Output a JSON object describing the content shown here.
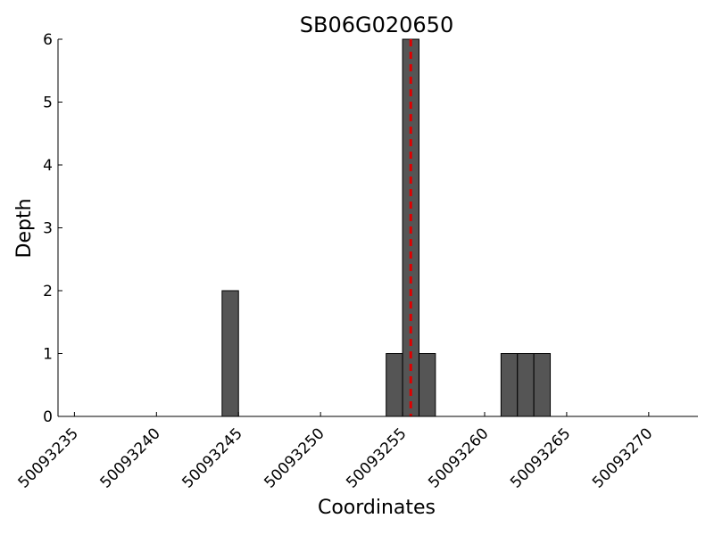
{
  "chart_data": {
    "type": "histogram",
    "title": "SB06G020650",
    "x_label": "Coordinates",
    "y_label": "Depth",
    "bins": [
      50093244,
      50093245,
      50093246,
      50093247,
      50093248,
      50093249,
      50093250,
      50093251,
      50093252,
      50093253,
      50093254,
      50093255,
      50093256,
      50093257,
      50093258,
      50093259,
      50093260,
      50093261,
      50093262,
      50093263,
      50093264
    ],
    "values": [
      2,
      0,
      0,
      0,
      0,
      0,
      0,
      0,
      0,
      0,
      1,
      6,
      1,
      0,
      0,
      0,
      0,
      1,
      1,
      1
    ],
    "color": "#555555",
    "vline": {
      "x": 50093255.5,
      "color": "#dd0000"
    },
    "xlim": [
      50093234,
      50093273
    ],
    "ylim": [
      0,
      6
    ],
    "xticks": [
      50093235,
      50093240,
      50093245,
      50093250,
      50093255,
      50093260,
      50093265,
      50093270
    ],
    "yticks": [
      0,
      1,
      2,
      3,
      4,
      5,
      6
    ]
  }
}
